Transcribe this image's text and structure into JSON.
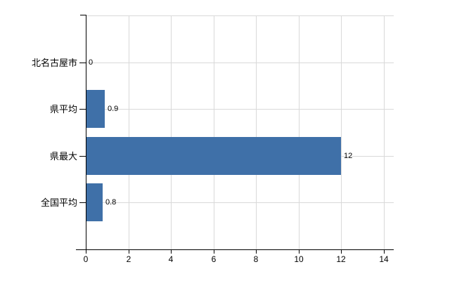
{
  "chart_data": {
    "type": "bar",
    "orientation": "horizontal",
    "title": "",
    "xlabel": "",
    "ylabel": "",
    "categories": [
      "北名古屋市",
      "県平均",
      "県最大",
      "全国平均"
    ],
    "values": [
      0,
      0.9,
      12,
      0.8
    ],
    "value_labels": [
      "0",
      "0.9",
      "12",
      "0.8"
    ],
    "x_ticks": [
      0,
      2,
      4,
      6,
      8,
      10,
      12,
      14
    ],
    "x_tick_labels": [
      "0",
      "2",
      "4",
      "6",
      "8",
      "10",
      "12",
      "14"
    ],
    "xlim": [
      0,
      14
    ],
    "grid": true,
    "legend": false,
    "colors": {
      "bar": "#3f70a8",
      "gridline": "#d9d9d9",
      "axis": "#000000",
      "text": "#000000",
      "background": "#ffffff"
    }
  }
}
